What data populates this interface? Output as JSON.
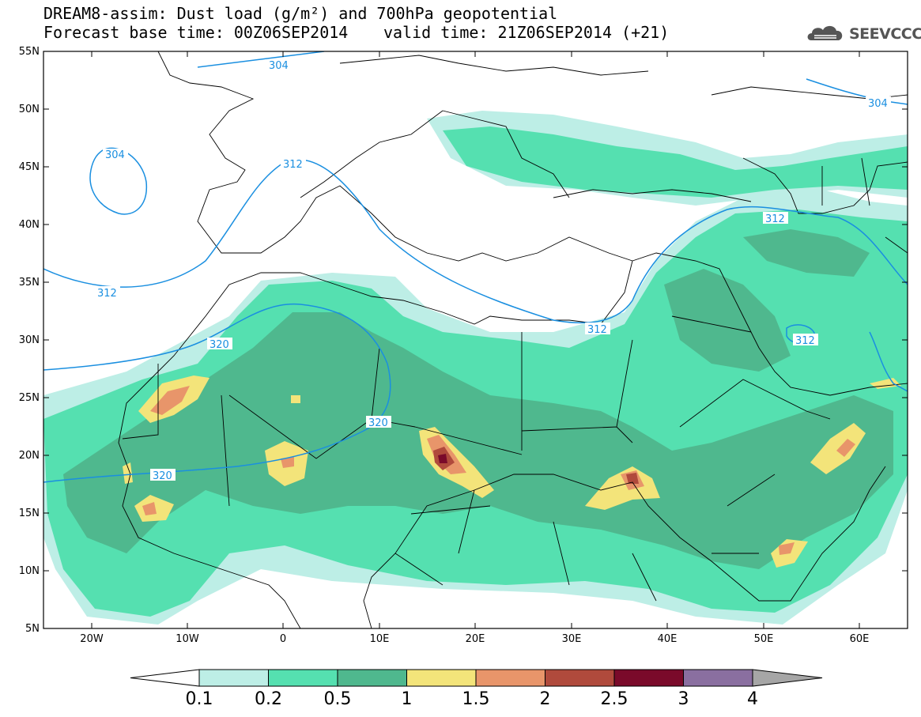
{
  "header": {
    "title_line1": "DREAM8-assim: Dust load (g/m²) and 700hPa geopotential",
    "title_line2a": "Forecast base time: 00Z06SEP2014",
    "title_line2b": "valid time: 21Z06SEP2014 (+21)",
    "logo_text": "SEEVCCC"
  },
  "map": {
    "lon_range": [
      -25,
      65
    ],
    "lat_range": [
      5,
      55
    ],
    "lat_ticks": [
      "5N",
      "10N",
      "15N",
      "20N",
      "25N",
      "30N",
      "35N",
      "40N",
      "45N",
      "50N",
      "55N"
    ],
    "lon_ticks": [
      "20W",
      "10W",
      "0",
      "10E",
      "20E",
      "30E",
      "40E",
      "50E",
      "60E"
    ],
    "contour_labels": [
      "304",
      "304",
      "304",
      "312",
      "312",
      "312",
      "312",
      "312",
      "320",
      "320",
      "320"
    ]
  },
  "colorbar": {
    "levels": [
      "0.1",
      "0.2",
      "0.5",
      "1",
      "1.5",
      "2",
      "2.5",
      "3",
      "4"
    ],
    "colors": [
      "#bdeee6",
      "#55e0b0",
      "#4fb88e",
      "#f3e47a",
      "#e8956a",
      "#b04a3c",
      "#7a0a2a",
      "#8a6fa0",
      "#a6a6a6"
    ]
  }
}
